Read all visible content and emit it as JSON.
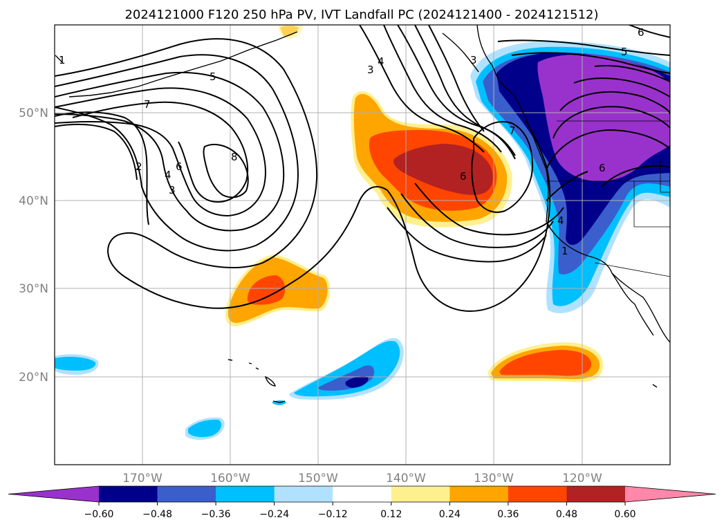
{
  "title": "2024121000 F120 250 hPa PV, IVT Landfall PC (2024121400 - 2024121512)",
  "lon_ticks": [
    "170°W",
    "160°W",
    "150°W",
    "140°W",
    "130°W",
    "120°W"
  ],
  "lat_ticks": [
    "50°N",
    "40°N",
    "30°N",
    "20°N"
  ],
  "colorbar": {
    "levels": [
      "−0.60",
      "−0.48",
      "−0.36",
      "−0.24",
      "−0.12",
      "0.12",
      "0.24",
      "0.36",
      "0.48",
      "0.60"
    ],
    "colors": [
      "#9932cc",
      "#00008b",
      "#3a5fcd",
      "#00bfff",
      "#b0e2ff",
      "#ffffff",
      "#fff08f",
      "#ffa500",
      "#ff4500",
      "#b22222",
      "#ff88aa"
    ]
  },
  "contour_labels": {
    "l1": "1",
    "l2": "2",
    "l3": "3",
    "l4": "4",
    "l5": "5",
    "l6": "6",
    "l7": "7",
    "l8": "8",
    "l3b": "3",
    "l4b": "4",
    "l5b": "5",
    "l6b": "6",
    "l7b": "7",
    "l6c": "6",
    "l5c": "5",
    "l3c": "3",
    "l4c": "4",
    "l6d": "6",
    "l1b": "1"
  }
}
